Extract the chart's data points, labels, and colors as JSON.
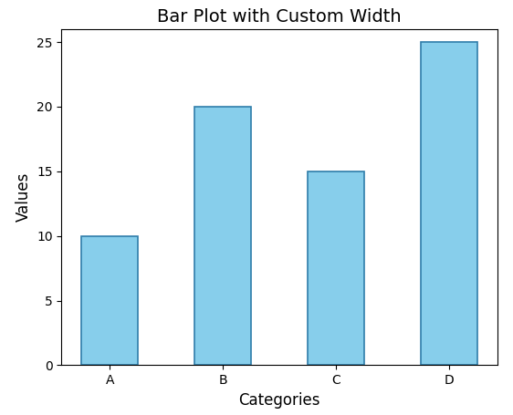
{
  "categories": [
    "A",
    "B",
    "C",
    "D"
  ],
  "values": [
    10,
    20,
    15,
    25
  ],
  "bar_color": "#87CEEB",
  "bar_edge_color": "#2F7DAA",
  "bar_width": 0.5,
  "title": "Bar Plot with Custom Width",
  "xlabel": "Categories",
  "ylabel": "Values",
  "ylim": [
    0,
    26
  ],
  "title_fontsize": 14,
  "label_fontsize": 12,
  "figsize": [
    5.62,
    4.55
  ],
  "dpi": 100
}
